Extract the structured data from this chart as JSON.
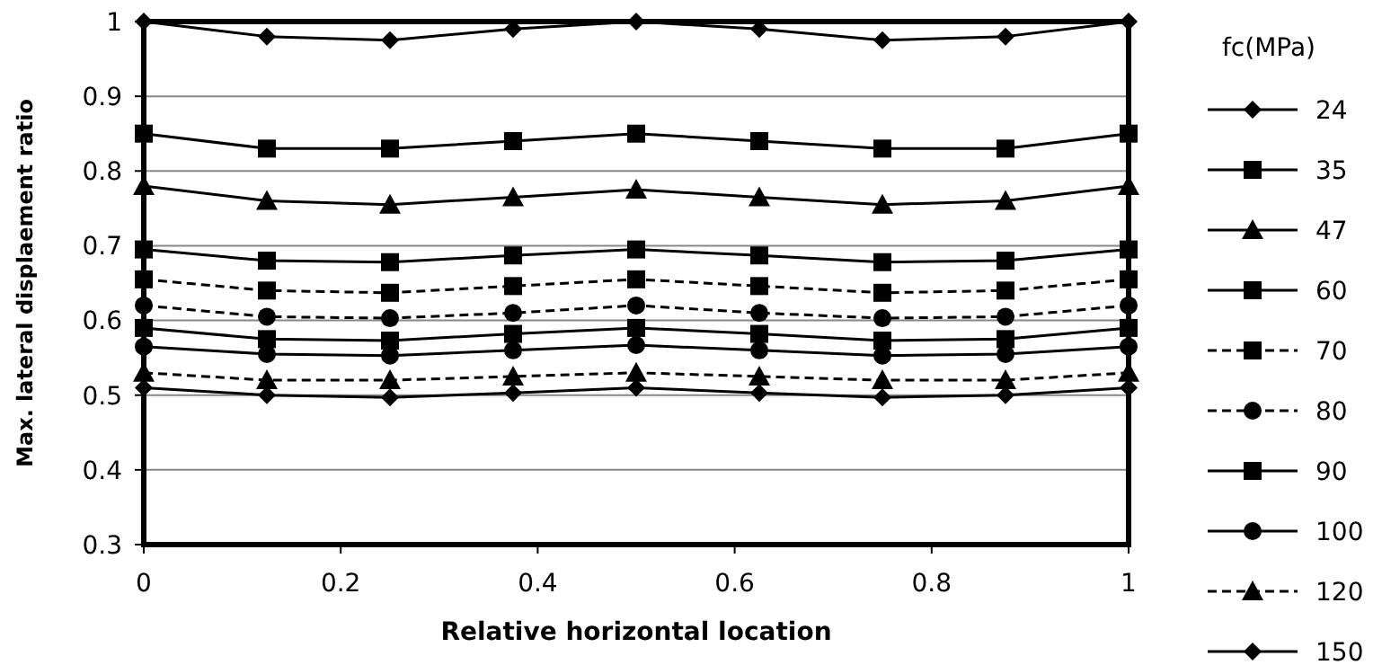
{
  "chart_data": {
    "type": "line",
    "xlabel": "Relative horizontal location",
    "ylabel": "Max. lateral displaement ratio",
    "legend_title": "fc(MPa)",
    "legend": "right",
    "grid": "y",
    "x": [
      0,
      0.125,
      0.25,
      0.375,
      0.5,
      0.625,
      0.75,
      0.875,
      1
    ],
    "xlim": [
      0,
      1
    ],
    "xticks": [
      0,
      0.2,
      0.4,
      0.6,
      0.8,
      1
    ],
    "ylim": [
      0.3,
      1
    ],
    "yticks": [
      0.3,
      0.4,
      0.5,
      0.6,
      0.7,
      0.8,
      0.9,
      1
    ],
    "series": [
      {
        "name": "24",
        "color": "#000000",
        "marker": "diamond",
        "line_style": "solid",
        "values": [
          1,
          0.98,
          0.975,
          0.99,
          1,
          0.99,
          0.975,
          0.98,
          1
        ]
      },
      {
        "name": "35",
        "color": "#000000",
        "marker": "square",
        "line_style": "solid",
        "values": [
          0.85,
          0.83,
          0.83,
          0.84,
          0.85,
          0.84,
          0.83,
          0.83,
          0.85
        ]
      },
      {
        "name": "47",
        "color": "#000000",
        "marker": "triangle",
        "line_style": "solid",
        "values": [
          0.78,
          0.76,
          0.755,
          0.765,
          0.775,
          0.765,
          0.755,
          0.76,
          0.78
        ]
      },
      {
        "name": "60",
        "color": "#000000",
        "marker": "square",
        "line_style": "solid",
        "values": [
          0.695,
          0.68,
          0.678,
          0.687,
          0.695,
          0.687,
          0.678,
          0.68,
          0.695
        ]
      },
      {
        "name": "70",
        "color": "#000000",
        "marker": "square",
        "line_style": "dashed",
        "values": [
          0.655,
          0.64,
          0.637,
          0.646,
          0.655,
          0.646,
          0.637,
          0.64,
          0.655
        ]
      },
      {
        "name": "80",
        "color": "#000000",
        "marker": "circle",
        "line_style": "dashed",
        "values": [
          0.62,
          0.605,
          0.603,
          0.61,
          0.62,
          0.61,
          0.603,
          0.605,
          0.62
        ]
      },
      {
        "name": "90",
        "color": "#000000",
        "marker": "square",
        "line_style": "solid",
        "values": [
          0.59,
          0.575,
          0.573,
          0.582,
          0.59,
          0.582,
          0.573,
          0.575,
          0.59
        ]
      },
      {
        "name": "100",
        "color": "#000000",
        "marker": "circle",
        "line_style": "solid",
        "values": [
          0.565,
          0.555,
          0.553,
          0.56,
          0.567,
          0.56,
          0.553,
          0.555,
          0.565
        ]
      },
      {
        "name": "120",
        "color": "#000000",
        "marker": "triangle",
        "line_style": "dashed",
        "values": [
          0.53,
          0.52,
          0.52,
          0.525,
          0.53,
          0.525,
          0.52,
          0.52,
          0.53
        ]
      },
      {
        "name": "150",
        "color": "#000000",
        "marker": "diamond",
        "line_style": "solid",
        "values": [
          0.51,
          0.5,
          0.497,
          0.503,
          0.51,
          0.503,
          0.497,
          0.5,
          0.51
        ]
      }
    ]
  }
}
